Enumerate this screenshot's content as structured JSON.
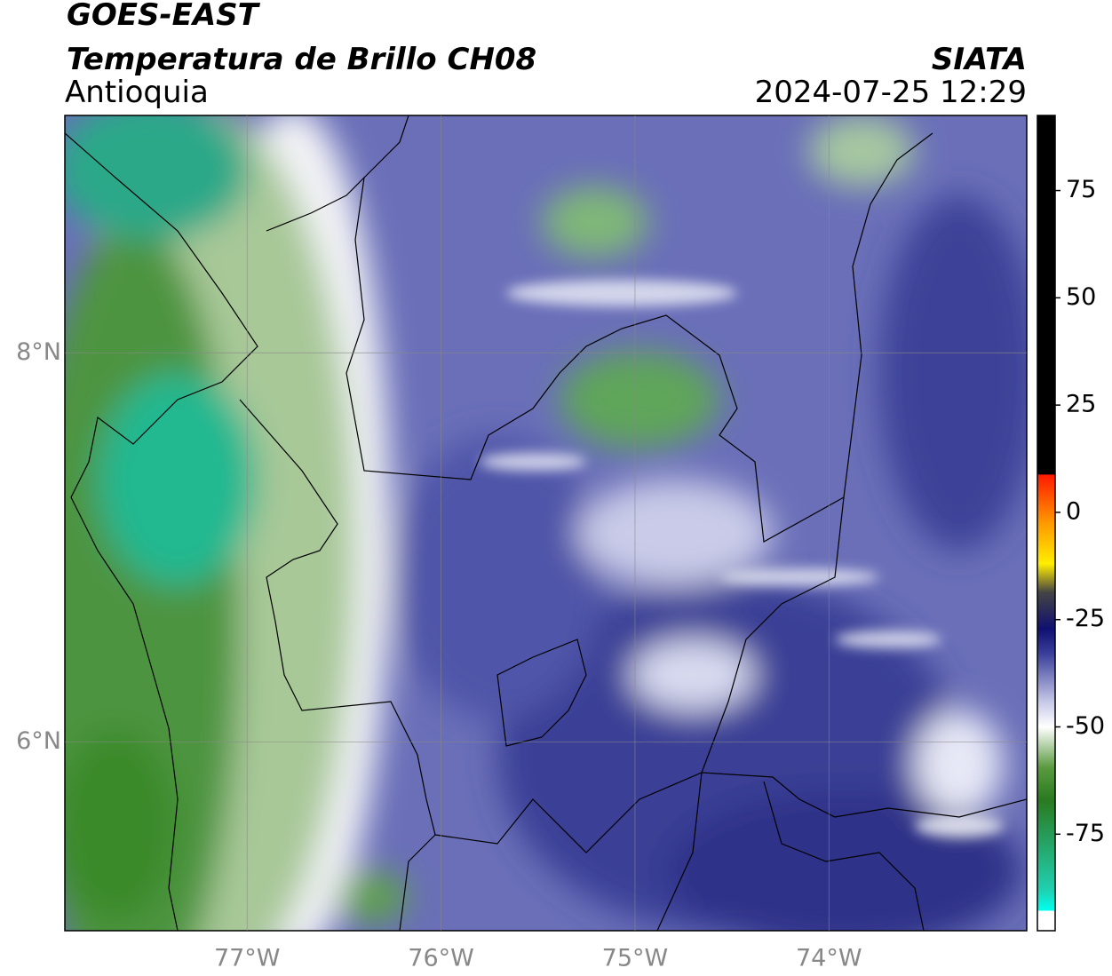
{
  "header": {
    "title": "GOES-EAST",
    "subtitle": "Temperatura de Brillo CH08",
    "region": "Antioquia",
    "source": "SIATA",
    "datetime": "2024-07-25 12:29"
  },
  "map": {
    "xlim": [
      -77.94,
      -72.98
    ],
    "ylim": [
      5.03,
      9.22
    ],
    "xticks": [
      {
        "value": -77,
        "label": "77°W"
      },
      {
        "value": -76,
        "label": "76°W"
      },
      {
        "value": -75,
        "label": "75°W"
      },
      {
        "value": -74,
        "label": "74°W"
      }
    ],
    "yticks": [
      {
        "value": 8,
        "label": "8°N"
      },
      {
        "value": 6,
        "label": "6°N"
      }
    ],
    "grid": true
  },
  "colorbar": {
    "lim": [
      -97.5,
      92.5
    ],
    "ticks": [
      75,
      50,
      25,
      0,
      -25,
      -50,
      -75
    ]
  }
}
